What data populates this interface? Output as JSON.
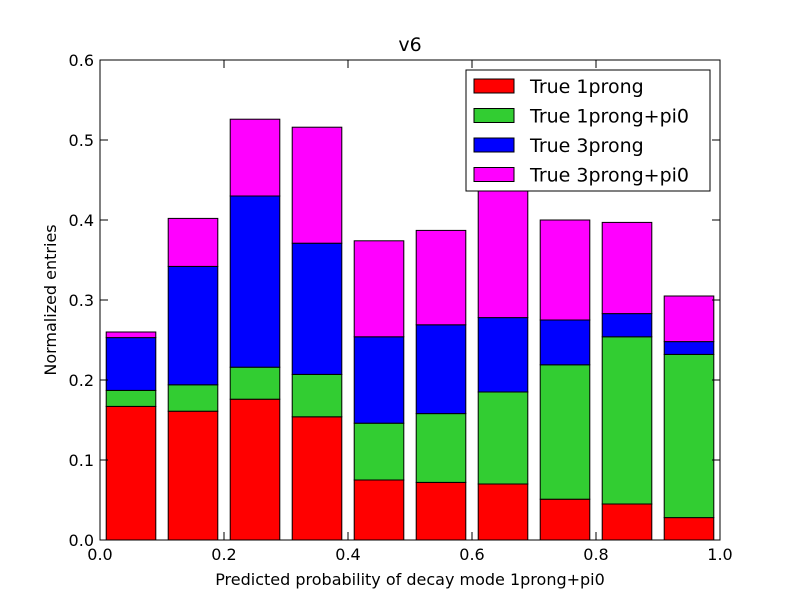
{
  "chart_data": {
    "type": "bar",
    "stacked": true,
    "title": "v6",
    "xlabel": "Predicted probability of decay mode 1prong+pi0",
    "ylabel": "Normalized entries",
    "xlim": [
      0.0,
      1.0
    ],
    "ylim": [
      0.0,
      0.6
    ],
    "xticks": [
      "0.0",
      "0.2",
      "0.4",
      "0.6",
      "0.8",
      "1.0"
    ],
    "yticks": [
      "0.0",
      "0.1",
      "0.2",
      "0.3",
      "0.4",
      "0.5",
      "0.6"
    ],
    "bin_width": 0.08,
    "x": [
      0.01,
      0.11,
      0.21,
      0.31,
      0.41,
      0.51,
      0.61,
      0.71,
      0.81,
      0.91
    ],
    "grid": false,
    "legend_position": "top-right",
    "series": [
      {
        "name": "True 1prong",
        "color": "#ff0000",
        "values": [
          0.167,
          0.161,
          0.176,
          0.154,
          0.075,
          0.072,
          0.07,
          0.051,
          0.045,
          0.028
        ]
      },
      {
        "name": "True 1prong+pi0",
        "color": "#32cd32",
        "values": [
          0.02,
          0.033,
          0.04,
          0.053,
          0.071,
          0.086,
          0.115,
          0.168,
          0.209,
          0.204
        ]
      },
      {
        "name": "True 3prong",
        "color": "#0000ff",
        "values": [
          0.066,
          0.148,
          0.214,
          0.164,
          0.108,
          0.111,
          0.093,
          0.056,
          0.029,
          0.016
        ]
      },
      {
        "name": "True 3prong+pi0",
        "color": "#ff00ff",
        "values": [
          0.007,
          0.06,
          0.096,
          0.145,
          0.12,
          0.118,
          0.182,
          0.125,
          0.114,
          0.057
        ]
      }
    ]
  }
}
